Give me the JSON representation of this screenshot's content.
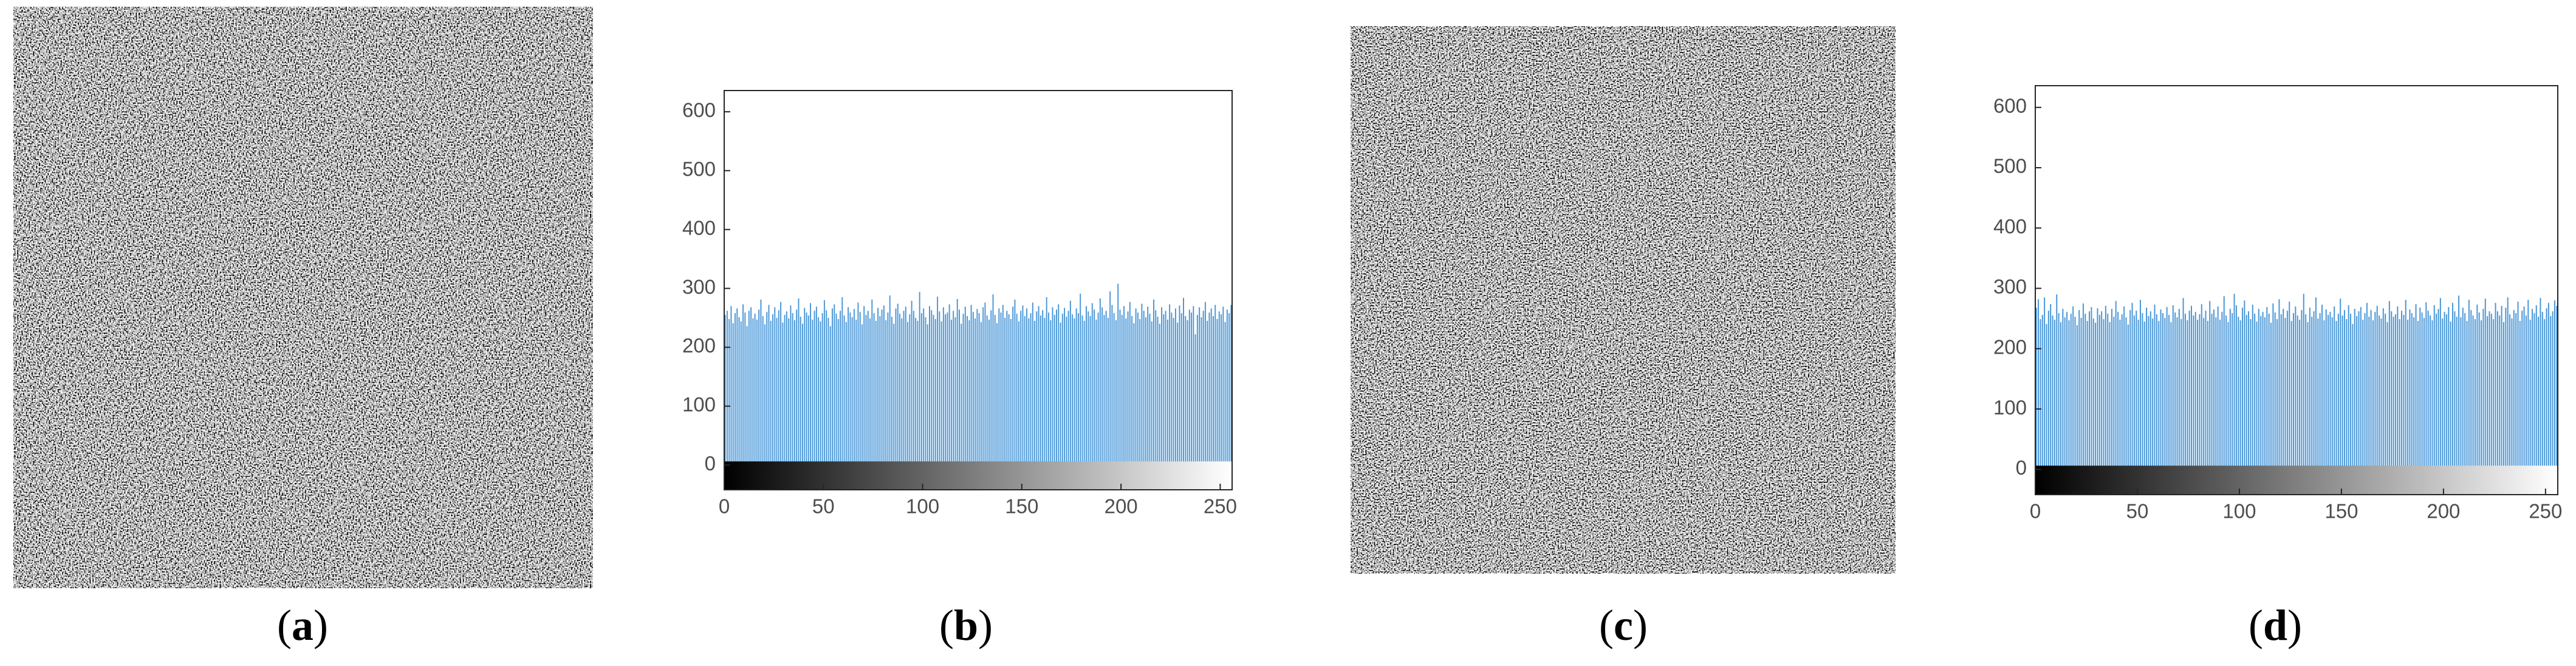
{
  "captions": [
    "(a)",
    "(b)",
    "(c)",
    "(d)"
  ],
  "chart_data": [
    {
      "type": "bar",
      "color": "#4a97d8",
      "xlim": [
        0,
        256
      ],
      "xticks": [
        0,
        50,
        100,
        150,
        200,
        250
      ],
      "ylim": [
        -42,
        636
      ],
      "yticks": [
        0,
        100,
        200,
        300,
        400,
        500,
        600
      ],
      "x": [
        0,
        1,
        2,
        3,
        4,
        5,
        6,
        7,
        8,
        9,
        10,
        11,
        12,
        13,
        14,
        15,
        16,
        17,
        18,
        19,
        20,
        21,
        22,
        23,
        24,
        25,
        26,
        27,
        28,
        29,
        30,
        31,
        32,
        33,
        34,
        35,
        36,
        37,
        38,
        39,
        40,
        41,
        42,
        43,
        44,
        45,
        46,
        47,
        48,
        49,
        50,
        51,
        52,
        53,
        54,
        55,
        56,
        57,
        58,
        59,
        60,
        61,
        62,
        63,
        64,
        65,
        66,
        67,
        68,
        69,
        70,
        71,
        72,
        73,
        74,
        75,
        76,
        77,
        78,
        79,
        80,
        81,
        82,
        83,
        84,
        85,
        86,
        87,
        88,
        89,
        90,
        91,
        92,
        93,
        94,
        95,
        96,
        97,
        98,
        99,
        100,
        101,
        102,
        103,
        104,
        105,
        106,
        107,
        108,
        109,
        110,
        111,
        112,
        113,
        114,
        115,
        116,
        117,
        118,
        119,
        120,
        121,
        122,
        123,
        124,
        125,
        126,
        127,
        128,
        129,
        130,
        131,
        132,
        133,
        134,
        135,
        136,
        137,
        138,
        139,
        140,
        141,
        142,
        143,
        144,
        145,
        146,
        147,
        148,
        149,
        150,
        151,
        152,
        153,
        154,
        155,
        156,
        157,
        158,
        159,
        160,
        161,
        162,
        163,
        164,
        165,
        166,
        167,
        168,
        169,
        170,
        171,
        172,
        173,
        174,
        175,
        176,
        177,
        178,
        179,
        180,
        181,
        182,
        183,
        184,
        185,
        186,
        187,
        188,
        189,
        190,
        191,
        192,
        193,
        194,
        195,
        196,
        197,
        198,
        199,
        200,
        201,
        202,
        203,
        204,
        205,
        206,
        207,
        208,
        209,
        210,
        211,
        212,
        213,
        214,
        215,
        216,
        217,
        218,
        219,
        220,
        221,
        222,
        223,
        224,
        225,
        226,
        227,
        228,
        229,
        230,
        231,
        232,
        233,
        234,
        235,
        236,
        237,
        238,
        239,
        240,
        241,
        242,
        243,
        244,
        245,
        246,
        247,
        248,
        249,
        250,
        251,
        252,
        253,
        254,
        255
      ],
      "values": [
        255,
        262,
        248,
        270,
        241,
        258,
        266,
        251,
        244,
        273,
        259,
        236,
        262,
        268,
        249,
        257,
        247,
        264,
        281,
        253,
        239,
        260,
        272,
        245,
        256,
        268,
        250,
        263,
        277,
        242,
        255,
        261,
        249,
        271,
        258,
        246,
        264,
        283,
        252,
        240,
        267,
        259,
        254,
        275,
        247,
        262,
        269,
        251,
        244,
        258,
        280,
        263,
        250,
        236,
        266,
        273,
        257,
        248,
        262,
        285,
        254,
        243,
        268,
        259,
        251,
        265,
        247,
        276,
        260,
        239,
        270,
        255,
        262,
        249,
        281,
        258,
        245,
        267,
        253,
        264,
        271,
        246,
        259,
        288,
        252,
        240,
        266,
        274,
        257,
        249,
        262,
        269,
        243,
        256,
        279,
        262,
        250,
        245,
        294,
        258,
        266,
        251,
        239,
        270,
        263,
        255,
        248,
        286,
        261,
        244,
        268,
        256,
        259,
        273,
        247,
        262,
        251,
        282,
        264,
        240,
        257,
        269,
        253,
        246,
        272,
        260,
        249,
        265,
        258,
        243,
        268,
        276,
        254,
        247,
        263,
        290,
        255,
        241,
        266,
        259,
        272,
        250,
        262,
        256,
        248,
        269,
        281,
        257,
        244,
        262,
        271,
        253,
        266,
        249,
        258,
        276,
        245,
        261,
        270,
        254,
        263,
        250,
        285,
        259,
        246,
        268,
        255,
        264,
        273,
        242,
        257,
        267,
        252,
        262,
        279,
        256,
        249,
        266,
        258,
        291,
        254,
        245,
        270,
        261,
        253,
        275,
        264,
        247,
        259,
        283,
        268,
        255,
        262,
        250,
        295,
        272,
        258,
        246,
        308,
        264,
        255,
        270,
        249,
        261,
        277,
        253,
        241,
        266,
        259,
        248,
        274,
        262,
        251,
        269,
        257,
        244,
        281,
        263,
        252,
        240,
        268,
        256,
        262,
        247,
        273,
        259,
        250,
        266,
        242,
        271,
        258,
        284,
        253,
        246,
        264,
        259,
        270,
        222,
        255,
        268,
        251,
        262,
        277,
        245,
        259,
        266,
        253,
        272,
        248,
        261,
        256,
        269,
        243,
        264,
        258,
        272
      ]
    },
    {
      "type": "bar",
      "color": "#4a97d8",
      "xlim": [
        0,
        256
      ],
      "xticks": [
        0,
        50,
        100,
        150,
        200,
        250
      ],
      "ylim": [
        -42,
        636
      ],
      "yticks": [
        0,
        100,
        200,
        300,
        400,
        500,
        600
      ],
      "x": [
        0,
        1,
        2,
        3,
        4,
        5,
        6,
        7,
        8,
        9,
        10,
        11,
        12,
        13,
        14,
        15,
        16,
        17,
        18,
        19,
        20,
        21,
        22,
        23,
        24,
        25,
        26,
        27,
        28,
        29,
        30,
        31,
        32,
        33,
        34,
        35,
        36,
        37,
        38,
        39,
        40,
        41,
        42,
        43,
        44,
        45,
        46,
        47,
        48,
        49,
        50,
        51,
        52,
        53,
        54,
        55,
        56,
        57,
        58,
        59,
        60,
        61,
        62,
        63,
        64,
        65,
        66,
        67,
        68,
        69,
        70,
        71,
        72,
        73,
        74,
        75,
        76,
        77,
        78,
        79,
        80,
        81,
        82,
        83,
        84,
        85,
        86,
        87,
        88,
        89,
        90,
        91,
        92,
        93,
        94,
        95,
        96,
        97,
        98,
        99,
        100,
        101,
        102,
        103,
        104,
        105,
        106,
        107,
        108,
        109,
        110,
        111,
        112,
        113,
        114,
        115,
        116,
        117,
        118,
        119,
        120,
        121,
        122,
        123,
        124,
        125,
        126,
        127,
        128,
        129,
        130,
        131,
        132,
        133,
        134,
        135,
        136,
        137,
        138,
        139,
        140,
        141,
        142,
        143,
        144,
        145,
        146,
        147,
        148,
        149,
        150,
        151,
        152,
        153,
        154,
        155,
        156,
        157,
        158,
        159,
        160,
        161,
        162,
        163,
        164,
        165,
        166,
        167,
        168,
        169,
        170,
        171,
        172,
        173,
        174,
        175,
        176,
        177,
        178,
        179,
        180,
        181,
        182,
        183,
        184,
        185,
        186,
        187,
        188,
        189,
        190,
        191,
        192,
        193,
        194,
        195,
        196,
        197,
        198,
        199,
        200,
        201,
        202,
        203,
        204,
        205,
        206,
        207,
        208,
        209,
        210,
        211,
        212,
        213,
        214,
        215,
        216,
        217,
        218,
        219,
        220,
        221,
        222,
        223,
        224,
        225,
        226,
        227,
        228,
        229,
        230,
        231,
        232,
        233,
        234,
        235,
        236,
        237,
        238,
        239,
        240,
        241,
        242,
        243,
        244,
        245,
        246,
        247,
        248,
        249,
        250,
        251,
        252,
        253,
        254,
        255
      ],
      "values": [
        268,
        282,
        249,
        256,
        285,
        241,
        263,
        274,
        255,
        248,
        290,
        259,
        244,
        266,
        252,
        261,
        247,
        258,
        270,
        253,
        239,
        264,
        251,
        275,
        258,
        246,
        262,
        269,
        250,
        243,
        267,
        256,
        262,
        249,
        271,
        258,
        244,
        266,
        253,
        279,
        261,
        248,
        257,
        270,
        252,
        240,
        264,
        276,
        255,
        263,
        248,
        281,
        259,
        245,
        268,
        254,
        262,
        250,
        273,
        257,
        246,
        265,
        259,
        251,
        269,
        256,
        244,
        272,
        260,
        252,
        266,
        249,
        284,
        258,
        247,
        263,
        271,
        255,
        261,
        248,
        257,
        274,
        251,
        263,
        246,
        279,
        258,
        265,
        252,
        270,
        248,
        261,
        287,
        255,
        244,
        266,
        259,
        291,
        272,
        253,
        247,
        268,
        280,
        256,
        262,
        249,
        273,
        258,
        245,
        266,
        254,
        261,
        252,
        269,
        258,
        243,
        275,
        260,
        249,
        282,
        257,
        266,
        251,
        263,
        278,
        246,
        259,
        270,
        255,
        248,
        264,
        291,
        257,
        244,
        268,
        253,
        262,
        285,
        250,
        259,
        273,
        247,
        265,
        256,
        261,
        252,
        270,
        246,
        258,
        283,
        255,
        264,
        249,
        272,
        258,
        241,
        266,
        254,
        262,
        269,
        248,
        259,
        276,
        253,
        264,
        247,
        261,
        271,
        255,
        250,
        267,
        258,
        244,
        279,
        262,
        253,
        257,
        270,
        249,
        263,
        256,
        281,
        248,
        265,
        259,
        252,
        274,
        246,
        268,
        260,
        251,
        277,
        263,
        255,
        247,
        272,
        258,
        266,
        284,
        250,
        261,
        257,
        269,
        245,
        276,
        262,
        253,
        288,
        252,
        268,
        259,
        246,
        281,
        264,
        255,
        249,
        273,
        260,
        247,
        266,
        283,
        254,
        262,
        258,
        249,
        276,
        262,
        255,
        271,
        244,
        268,
        285,
        257,
        250,
        264,
        259,
        278,
        246,
        263,
        270,
        255,
        281,
        248,
        266,
        259,
        272,
        253,
        284,
        261,
        249,
        267,
        276,
        254,
        262,
        280,
        271
      ]
    }
  ]
}
